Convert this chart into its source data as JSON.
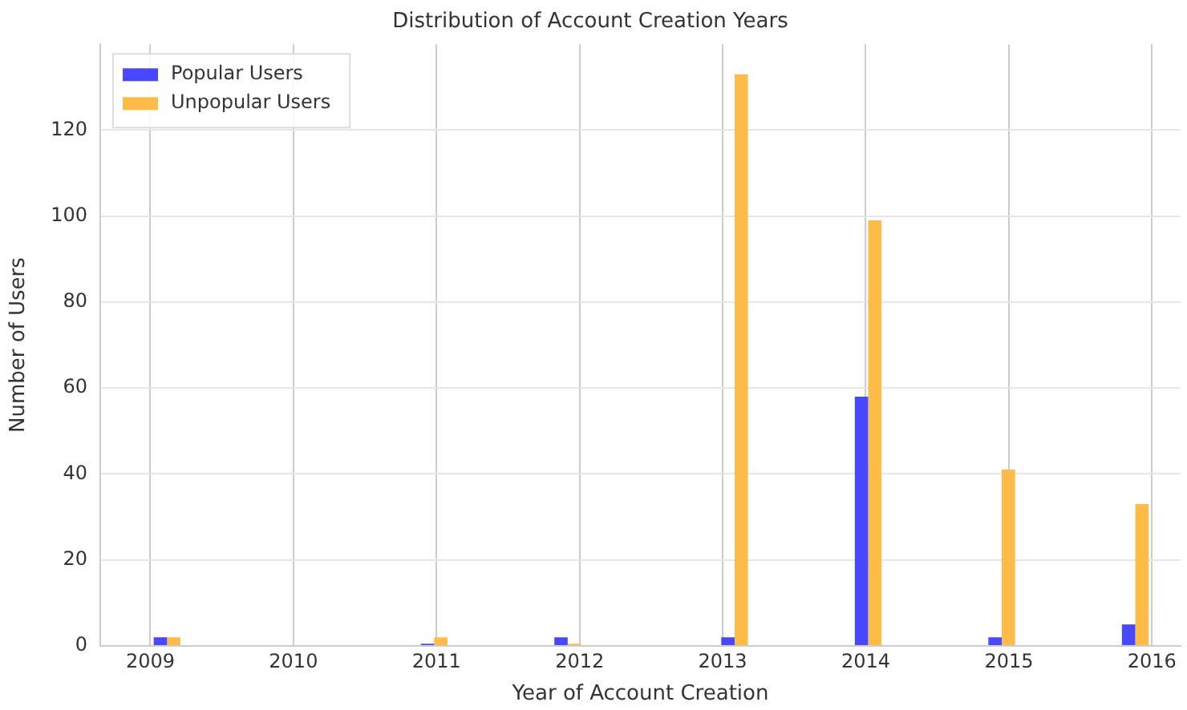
{
  "chart_data": {
    "type": "histogram",
    "title": "Distribution of Account Creation Years",
    "xlabel": "Year of Account Creation",
    "ylabel": "Number of Users",
    "bins": [
      2009,
      2009.2333,
      2009.4667,
      2009.7,
      2009.9333,
      2010.1667,
      2010.4,
      2010.6333,
      2010.8667,
      2011.1,
      2011.3333,
      2011.5667,
      2011.8,
      2012.0333,
      2012.2667,
      2012.5,
      2012.7333,
      2012.9667,
      2013.2,
      2013.4333,
      2013.6667,
      2013.9,
      2014.1333,
      2014.3667,
      2014.6,
      2014.8333,
      2015.0667,
      2015.3,
      2015.5333,
      2015.7667,
      2016
    ],
    "series": [
      {
        "name": "Popular Users",
        "color": "#4848ff",
        "values": [
          2,
          0,
          0,
          0,
          0,
          0,
          0,
          0,
          0.5,
          0,
          0,
          0,
          2,
          0,
          0,
          0,
          0,
          2,
          0,
          0,
          0,
          58,
          0,
          0,
          0,
          2,
          0,
          0,
          0,
          5
        ]
      },
      {
        "name": "Unpopular Users",
        "color": "#ffbb48",
        "values": [
          2,
          0,
          0,
          0,
          0,
          0,
          0,
          0,
          2,
          0,
          0,
          0,
          0.5,
          0,
          0,
          0,
          0,
          133,
          0,
          0,
          0,
          99,
          0,
          0,
          0,
          41,
          0,
          0,
          0,
          33
        ]
      }
    ],
    "xlim": [
      2008.65,
      2016.2
    ],
    "xticks": [
      2009,
      2010,
      2011,
      2012,
      2013,
      2014,
      2015,
      2016
    ],
    "ylim": [
      0,
      140
    ],
    "yticks": [
      0,
      20,
      40,
      60,
      80,
      100,
      120
    ],
    "grid": true,
    "legend": "top left"
  }
}
